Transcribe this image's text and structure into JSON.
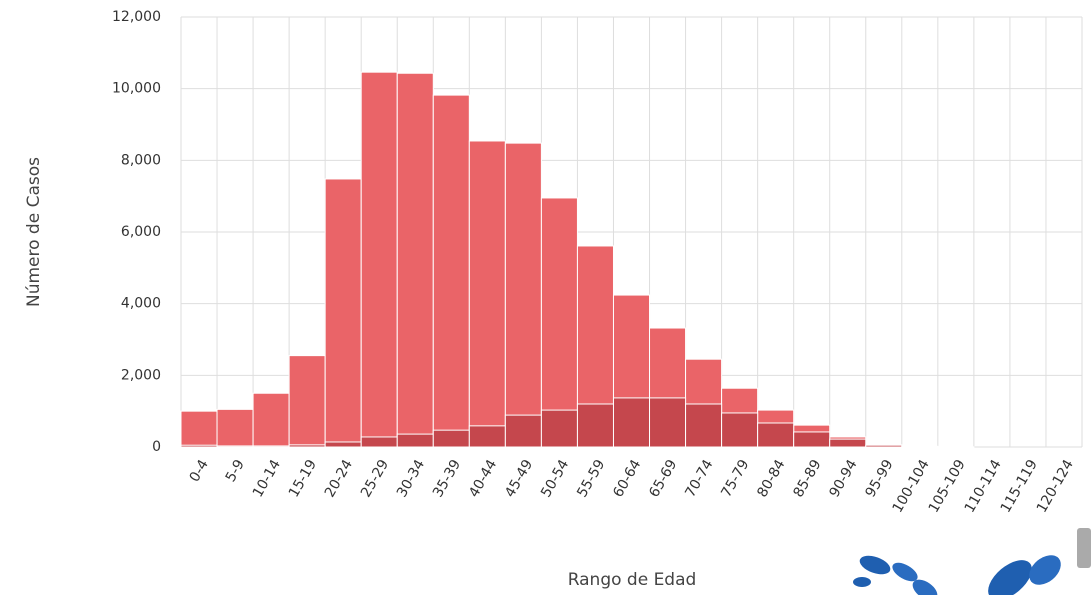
{
  "chart_data": {
    "type": "bar",
    "x_label": "Rango de Edad",
    "y_label": "Número de Casos",
    "categories": [
      "0-4",
      "5-9",
      "10-14",
      "15-19",
      "20-24",
      "25-29",
      "30-34",
      "35-39",
      "40-44",
      "45-49",
      "50-54",
      "55-59",
      "60-64",
      "65-69",
      "70-74",
      "75-79",
      "80-84",
      "85-89",
      "90-94",
      "95-99",
      "100-104",
      "105-109",
      "110-114",
      "115-119",
      "120-124"
    ],
    "series": [
      {
        "color": "#ea6468",
        "values": [
          1000,
          1050,
          1500,
          2550,
          7480,
          10460,
          10430,
          9820,
          8540,
          8480,
          6950,
          5610,
          4240,
          3320,
          2450,
          1640,
          1030,
          610,
          280,
          60,
          20,
          5,
          0,
          0,
          0
        ]
      },
      {
        "color": "#c5474d",
        "values": [
          50,
          30,
          30,
          60,
          140,
          280,
          360,
          470,
          590,
          890,
          1030,
          1200,
          1370,
          1370,
          1200,
          950,
          670,
          420,
          220,
          50,
          10,
          0,
          0,
          0,
          0
        ]
      }
    ],
    "ylim": [
      0,
      12000
    ],
    "yticks": [
      0,
      {
        "value": 2000,
        "label": "2,000"
      },
      {
        "value": 4000,
        "label": "4,000"
      },
      {
        "value": 6000,
        "label": "6,000"
      },
      {
        "value": 8000,
        "label": "8,000"
      },
      {
        "value": 10000,
        "label": "10,000"
      },
      {
        "value": 12000,
        "label": "12,000"
      }
    ],
    "grid": true
  }
}
